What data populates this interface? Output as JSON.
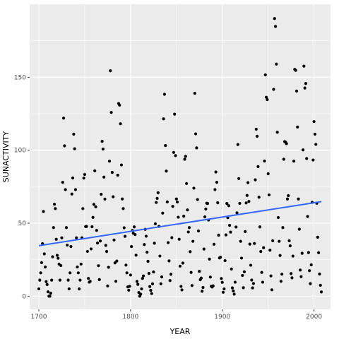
{
  "chart_data": {
    "type": "scatter",
    "xlabel": "YEAR",
    "ylabel": "SUNACTIVITY",
    "xlim": [
      1690,
      2018
    ],
    "ylim": [
      -9,
      200
    ],
    "xticks": [
      1700,
      1800,
      1900,
      2000
    ],
    "xtick_labels": [
      "1700",
      "1800",
      "1900",
      "2000"
    ],
    "yticks": [
      0,
      50,
      100,
      150
    ],
    "ytick_labels": [
      "0",
      "50",
      "100",
      "150"
    ],
    "grid": true,
    "legend": "none",
    "colors": {
      "panel_background": "#ebebeb",
      "grid": "#ffffff",
      "point": "#000000",
      "trend_line": "#3366ff"
    },
    "trend_line": {
      "x": [
        1700,
        2008
      ],
      "y": [
        34.6,
        64.8
      ]
    },
    "series": [
      {
        "x": [
          1700,
          1701,
          1702,
          1703,
          1704,
          1705,
          1706,
          1707,
          1708,
          1709,
          1710,
          1711,
          1712,
          1713,
          1714,
          1715,
          1716,
          1717,
          1718,
          1719,
          1720,
          1721,
          1722,
          1723,
          1724,
          1725,
          1726,
          1727,
          1728,
          1729,
          1730,
          1731,
          1732,
          1733,
          1734,
          1735,
          1736,
          1737,
          1738,
          1739,
          1740,
          1741,
          1742,
          1743,
          1744,
          1745,
          1746,
          1747,
          1748,
          1749,
          1750,
          1751,
          1752,
          1753,
          1754,
          1755,
          1756,
          1757,
          1758,
          1759,
          1760,
          1761,
          1762,
          1763,
          1764,
          1765,
          1766,
          1767,
          1768,
          1769,
          1770,
          1771,
          1772,
          1773,
          1774,
          1775,
          1776,
          1777,
          1778,
          1779,
          1780,
          1781,
          1782,
          1783,
          1784,
          1785,
          1786,
          1787,
          1788,
          1789,
          1790,
          1791,
          1792,
          1793,
          1794,
          1795,
          1796,
          1797,
          1798,
          1799,
          1800,
          1801,
          1802,
          1803,
          1804,
          1805,
          1806,
          1807,
          1808,
          1809,
          1810,
          1811,
          1812,
          1813,
          1814,
          1815,
          1816,
          1817,
          1818,
          1819,
          1820,
          1821,
          1822,
          1823,
          1824,
          1825,
          1826,
          1827,
          1828,
          1829,
          1830,
          1831,
          1832,
          1833,
          1834,
          1835,
          1836,
          1837,
          1838,
          1839,
          1840,
          1841,
          1842,
          1843,
          1844,
          1845,
          1846,
          1847,
          1848,
          1849,
          1850,
          1851,
          1852,
          1853,
          1854,
          1855,
          1856,
          1857,
          1858,
          1859,
          1860,
          1861,
          1862,
          1863,
          1864,
          1865,
          1866,
          1867,
          1868,
          1869,
          1870,
          1871,
          1872,
          1873,
          1874,
          1875,
          1876,
          1877,
          1878,
          1879,
          1880,
          1881,
          1882,
          1883,
          1884,
          1885,
          1886,
          1887,
          1888,
          1889,
          1890,
          1891,
          1892,
          1893,
          1894,
          1895,
          1896,
          1897,
          1898,
          1899,
          1900,
          1901,
          1902,
          1903,
          1904,
          1905,
          1906,
          1907,
          1908,
          1909,
          1910,
          1911,
          1912,
          1913,
          1914,
          1915,
          1916,
          1917,
          1918,
          1919,
          1920,
          1921,
          1922,
          1923,
          1924,
          1925,
          1926,
          1927,
          1928,
          1929,
          1930,
          1931,
          1932,
          1933,
          1934,
          1935,
          1936,
          1937,
          1938,
          1939,
          1940,
          1941,
          1942,
          1943,
          1944,
          1945,
          1946,
          1947,
          1948,
          1949,
          1950,
          1951,
          1952,
          1953,
          1954,
          1955,
          1956,
          1957,
          1958,
          1959,
          1960,
          1961,
          1962,
          1963,
          1964,
          1965,
          1966,
          1967,
          1968,
          1969,
          1970,
          1971,
          1972,
          1973,
          1974,
          1975,
          1976,
          1977,
          1978,
          1979,
          1980,
          1981,
          1982,
          1983,
          1984,
          1985,
          1986,
          1987,
          1988,
          1989,
          1990,
          1991,
          1992,
          1993,
          1994,
          1995,
          1996,
          1997,
          1998,
          1999,
          2000,
          2001,
          2002,
          2003,
          2004,
          2005,
          2006,
          2007,
          2008
        ],
        "y": [
          5,
          11,
          16,
          23,
          36,
          58,
          29,
          20,
          10,
          8,
          3,
          0,
          0,
          2,
          11,
          27,
          47,
          63,
          60,
          39,
          28,
          26,
          22,
          11,
          21,
          40,
          78,
          122,
          103,
          73,
          47,
          35,
          11,
          5,
          16,
          34,
          70,
          81,
          111,
          101,
          73,
          40,
          20,
          16,
          5,
          11,
          22,
          40,
          60,
          80.9,
          83.4,
          47.7,
          47.8,
          30.7,
          12.2,
          9.6,
          10.2,
          32.4,
          47.6,
          54,
          62.9,
          85.9,
          61.2,
          45.1,
          36.4,
          20.9,
          11.4,
          37.8,
          69.8,
          106.1,
          100.8,
          81.6,
          66.5,
          34.8,
          30.6,
          7,
          19.8,
          92.5,
          154.4,
          125.9,
          84.8,
          68.1,
          38.5,
          22.8,
          10.2,
          24.1,
          82.9,
          132,
          130.9,
          118.1,
          89.9,
          66.6,
          60,
          46.9,
          41,
          21.3,
          16,
          6.4,
          4.1,
          6.8,
          14.5,
          34,
          45,
          43.1,
          47.5,
          42.2,
          28.1,
          10.1,
          8.1,
          2.5,
          0,
          1.4,
          5,
          12.2,
          13.9,
          35.4,
          45.8,
          41.1,
          30.1,
          23.9,
          15.6,
          6.6,
          4,
          1.8,
          8.5,
          16.6,
          36.3,
          49.6,
          64.2,
          67,
          70.9,
          47.8,
          27.5,
          8.5,
          13.2,
          56.9,
          121.5,
          138.3,
          103.2,
          85.7,
          64.6,
          36.7,
          24.2,
          10.7,
          15,
          40.1,
          61.5,
          98.5,
          124.7,
          96.3,
          66.6,
          64.5,
          54.1,
          39,
          20.6,
          6.7,
          4.3,
          22.7,
          54.8,
          93.8,
          95.8,
          77.2,
          59.1,
          44,
          47,
          30.5,
          16.3,
          7.3,
          37.6,
          74,
          139,
          111.2,
          101.6,
          66.2,
          44.7,
          17,
          11.3,
          12.4,
          3.4,
          6,
          32.3,
          54.3,
          59.7,
          63.7,
          63.5,
          52.2,
          25.4,
          13.1,
          6.8,
          6.3,
          7.1,
          35.6,
          73,
          85.1,
          78,
          64,
          41.8,
          26.2,
          26.7,
          12.1,
          9.5,
          2.7,
          5,
          24.4,
          42,
          63.5,
          53.8,
          62,
          48.5,
          43.9,
          18.6,
          5.7,
          3.6,
          1.4,
          9.6,
          47.4,
          57.1,
          103.9,
          80.6,
          63.6,
          37.6,
          26.1,
          14.2,
          5.8,
          16.7,
          44.3,
          63.9,
          69,
          77.8,
          64.9,
          35.7,
          21.2,
          11.1,
          5.7,
          8.7,
          36.1,
          79.7,
          114.4,
          109.6,
          88.8,
          67.8,
          47.5,
          30.6,
          16.3,
          9.6,
          33.2,
          92.6,
          151.6,
          136.3,
          134.7,
          83.9,
          69.4,
          31.5,
          13.9,
          4.4,
          38,
          141.7,
          190.2,
          184.8,
          159,
          112.3,
          53.9,
          37.6,
          27.9,
          10.2,
          15.1,
          47,
          93.8,
          105.9,
          105.5,
          104.5,
          66.6,
          68.9,
          38,
          34.5,
          15.5,
          12.6,
          27.5,
          92.5,
          155.4,
          154.7,
          140.5,
          115.9,
          66.6,
          45.9,
          17.9,
          13.4,
          29.4,
          100.2,
          157.6,
          142.6,
          145.7,
          94.3,
          54.6,
          29.9,
          17.5,
          8.6,
          21.5,
          64.3,
          93.3,
          119.6,
          111,
          104,
          63.7,
          40.4,
          29.8,
          15.2,
          7.5,
          2.9
        ]
      }
    ]
  }
}
